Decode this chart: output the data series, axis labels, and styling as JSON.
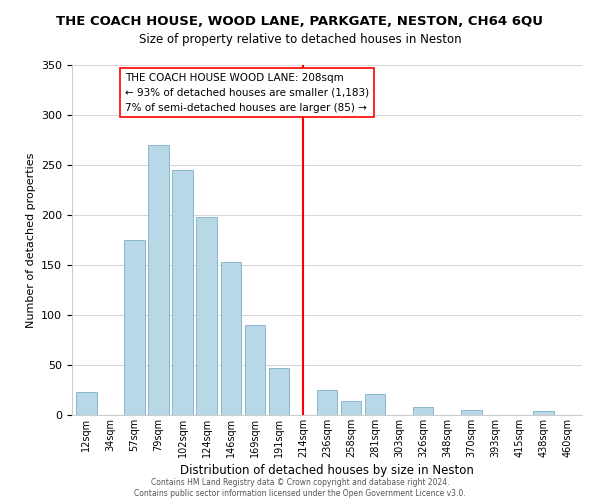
{
  "title": "THE COACH HOUSE, WOOD LANE, PARKGATE, NESTON, CH64 6QU",
  "subtitle": "Size of property relative to detached houses in Neston",
  "xlabel": "Distribution of detached houses by size in Neston",
  "ylabel": "Number of detached properties",
  "footer_line1": "Contains HM Land Registry data © Crown copyright and database right 2024.",
  "footer_line2": "Contains public sector information licensed under the Open Government Licence v3.0.",
  "bar_labels": [
    "12sqm",
    "34sqm",
    "57sqm",
    "79sqm",
    "102sqm",
    "124sqm",
    "146sqm",
    "169sqm",
    "191sqm",
    "214sqm",
    "236sqm",
    "258sqm",
    "281sqm",
    "303sqm",
    "326sqm",
    "348sqm",
    "370sqm",
    "393sqm",
    "415sqm",
    "438sqm",
    "460sqm"
  ],
  "bar_values": [
    23,
    0,
    175,
    270,
    245,
    198,
    153,
    90,
    47,
    0,
    25,
    14,
    21,
    0,
    8,
    0,
    5,
    0,
    0,
    4,
    0
  ],
  "bar_color": "#b8d8e8",
  "bar_edge_color": "#7aafc8",
  "vline_index": 9,
  "vline_color": "red",
  "annotation_title": "THE COACH HOUSE WOOD LANE: 208sqm",
  "annotation_line1": "← 93% of detached houses are smaller (1,183)",
  "annotation_line2": "7% of semi-detached houses are larger (85) →",
  "ylim": [
    0,
    350
  ],
  "yticks": [
    0,
    50,
    100,
    150,
    200,
    250,
    300,
    350
  ]
}
